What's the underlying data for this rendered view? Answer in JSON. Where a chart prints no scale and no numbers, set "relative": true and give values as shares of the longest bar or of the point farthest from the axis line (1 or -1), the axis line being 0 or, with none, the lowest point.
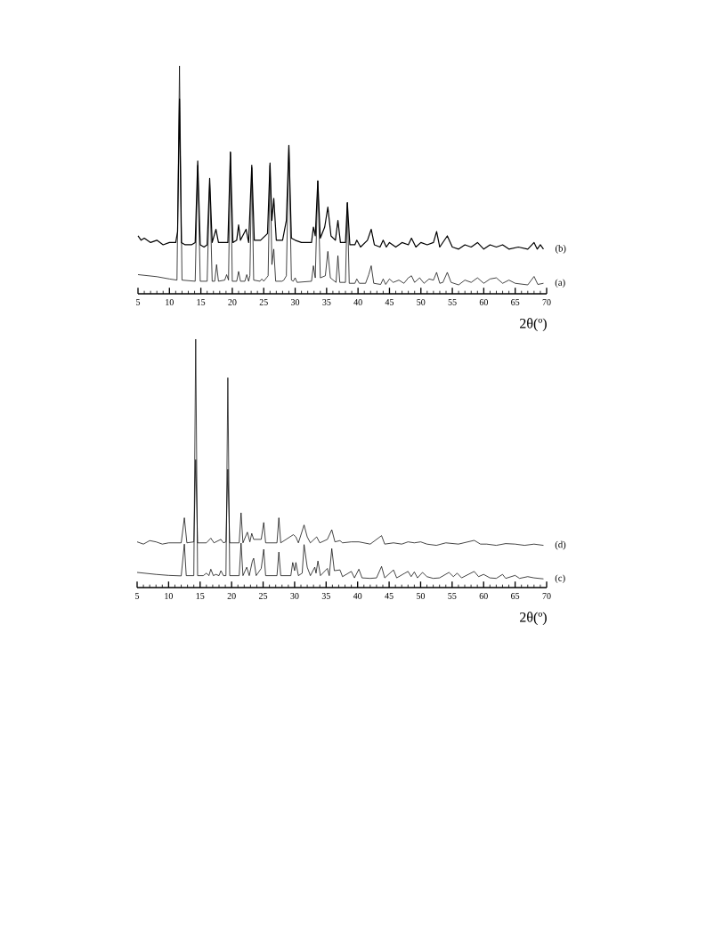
{
  "chart_data": [
    {
      "type": "line",
      "relative": true,
      "xlabel": "2θ(º)",
      "xlim": [
        5,
        70
      ],
      "xticks": [
        5,
        10,
        15,
        20,
        25,
        30,
        35,
        40,
        45,
        50,
        55,
        60,
        65,
        70
      ],
      "grid": false,
      "legend": false,
      "series": [
        {
          "name": "(b)",
          "color": "#000000",
          "x": [
            5,
            5.5,
            6,
            7,
            8,
            9,
            10,
            11,
            11.3,
            11.6,
            11.9,
            12.5,
            13.5,
            14.1,
            14.5,
            14.9,
            15.5,
            16.0,
            16.4,
            16.8,
            17.4,
            17.8,
            18.5,
            19.3,
            19.7,
            20.1,
            20.7,
            21.0,
            21.3,
            22.2,
            22.6,
            23.1,
            23.5,
            24.5,
            25.6,
            26.0,
            26.3,
            26.6,
            27.0,
            28.0,
            28.6,
            29.0,
            29.4,
            30.0,
            31.0,
            32.6,
            32.9,
            33.2,
            33.6,
            34.0,
            34.7,
            35.2,
            35.7,
            36.4,
            36.8,
            37.2,
            38.0,
            38.3,
            38.7,
            39.5,
            39.8,
            40.4,
            41.5,
            42.1,
            42.6,
            43.5,
            44.0,
            44.5,
            45.0,
            46.0,
            47.0,
            48.0,
            48.5,
            49.2,
            50.0,
            51.0,
            52.0,
            52.5,
            53.0,
            54.2,
            55.0,
            56.0,
            57.0,
            58.0,
            59.0,
            60.0,
            61.0,
            62.0,
            63.0,
            64.0,
            65.5,
            67.0,
            68.0,
            68.5,
            69.0,
            69.5
          ],
          "values": [
            0.254,
            0.235,
            0.244,
            0.225,
            0.235,
            0.215,
            0.225,
            0.225,
            0.273,
            0.855,
            0.225,
            0.215,
            0.215,
            0.225,
            0.583,
            0.215,
            0.205,
            0.215,
            0.506,
            0.225,
            0.283,
            0.225,
            0.225,
            0.225,
            0.622,
            0.225,
            0.235,
            0.302,
            0.235,
            0.283,
            0.225,
            0.564,
            0.235,
            0.235,
            0.264,
            0.574,
            0.322,
            0.419,
            0.235,
            0.235,
            0.322,
            0.651,
            0.244,
            0.235,
            0.225,
            0.225,
            0.293,
            0.254,
            0.496,
            0.244,
            0.293,
            0.38,
            0.254,
            0.235,
            0.322,
            0.225,
            0.225,
            0.4,
            0.215,
            0.215,
            0.235,
            0.205,
            0.235,
            0.283,
            0.215,
            0.205,
            0.235,
            0.205,
            0.225,
            0.205,
            0.225,
            0.215,
            0.244,
            0.205,
            0.225,
            0.215,
            0.225,
            0.273,
            0.205,
            0.254,
            0.205,
            0.196,
            0.215,
            0.205,
            0.225,
            0.196,
            0.215,
            0.205,
            0.215,
            0.196,
            0.205,
            0.196,
            0.225,
            0.196,
            0.215,
            0.196
          ]
        },
        {
          "name": "(a)",
          "color": "#000000",
          "x": [
            5,
            8,
            10,
            11.2,
            11.6,
            12.0,
            14.1,
            14.5,
            14.9,
            16.0,
            16.4,
            16.8,
            17.2,
            17.5,
            17.8,
            18.8,
            19.1,
            19.4,
            19.7,
            20.0,
            20.7,
            21.0,
            21.3,
            22.0,
            22.3,
            22.6,
            22.8,
            23.1,
            23.4,
            24.4,
            24.7,
            25.0,
            25.7,
            26.0,
            26.3,
            26.6,
            26.9,
            27.9,
            28.2,
            28.6,
            29.0,
            29.4,
            29.7,
            30.0,
            30.3,
            32.6,
            32.9,
            33.2,
            33.6,
            34.0,
            34.8,
            35.2,
            35.6,
            36.5,
            36.8,
            37.1,
            38.0,
            38.3,
            38.6,
            39.5,
            39.8,
            40.2,
            41.2,
            41.7,
            42.1,
            42.5,
            43.6,
            44.0,
            44.4,
            45.0,
            45.6,
            46.5,
            47.3,
            48.0,
            48.5,
            49.0,
            49.8,
            50.5,
            51.3,
            52.0,
            52.5,
            53.0,
            53.5,
            54.2,
            54.8,
            56.0,
            57.0,
            58.0,
            59.0,
            60.0,
            61.0,
            62.0,
            63.0,
            64.0,
            65.0,
            67.0,
            68.0,
            68.6,
            69.5
          ],
          "values": [
            0.084,
            0.075,
            0.065,
            0.06,
            1.0,
            0.06,
            0.055,
            0.564,
            0.055,
            0.055,
            0.486,
            0.055,
            0.055,
            0.128,
            0.055,
            0.06,
            0.084,
            0.06,
            0.622,
            0.055,
            0.055,
            0.098,
            0.055,
            0.055,
            0.084,
            0.055,
            0.079,
            0.554,
            0.06,
            0.055,
            0.065,
            0.055,
            0.079,
            0.564,
            0.128,
            0.196,
            0.055,
            0.055,
            0.06,
            0.079,
            0.651,
            0.06,
            0.055,
            0.07,
            0.05,
            0.055,
            0.123,
            0.07,
            0.496,
            0.07,
            0.079,
            0.186,
            0.07,
            0.05,
            0.167,
            0.05,
            0.05,
            0.4,
            0.046,
            0.046,
            0.065,
            0.046,
            0.046,
            0.084,
            0.123,
            0.046,
            0.041,
            0.065,
            0.041,
            0.065,
            0.05,
            0.06,
            0.046,
            0.07,
            0.079,
            0.05,
            0.07,
            0.046,
            0.065,
            0.06,
            0.094,
            0.046,
            0.05,
            0.094,
            0.05,
            0.039,
            0.06,
            0.05,
            0.07,
            0.046,
            0.065,
            0.07,
            0.046,
            0.06,
            0.046,
            0.039,
            0.076,
            0.041,
            0.046
          ]
        }
      ]
    },
    {
      "type": "line",
      "relative": true,
      "xlabel": "2θ(º)",
      "xlim": [
        5,
        70
      ],
      "xticks": [
        5,
        10,
        15,
        20,
        25,
        30,
        35,
        40,
        45,
        50,
        55,
        60,
        65,
        70
      ],
      "grid": false,
      "legend": false,
      "series": [
        {
          "name": "(d)",
          "color": "#000000",
          "x": [
            5,
            6,
            7,
            8,
            9,
            10,
            12.0,
            12.5,
            12.9,
            14.0,
            14.3,
            14.6,
            16.0,
            16.7,
            17.2,
            18.3,
            18.7,
            19.1,
            19.4,
            19.7,
            21.2,
            21.5,
            21.8,
            22.5,
            22.9,
            23.2,
            23.5,
            24.7,
            25.1,
            25.4,
            27.2,
            27.5,
            27.8,
            29.8,
            30.2,
            30.6,
            31.5,
            32.0,
            32.5,
            33.5,
            34.0,
            35.2,
            35.9,
            36.4,
            37.2,
            37.6,
            39.0,
            40.2,
            42.0,
            43.8,
            44.3,
            45.7,
            47.0,
            48.0,
            49.0,
            50.0,
            51.0,
            52.5,
            54.0,
            56.0,
            58.5,
            59.5,
            60.5,
            62.0,
            63.5,
            65.0,
            66.5,
            68.0,
            69.5
          ],
          "values": [
            0.184,
            0.175,
            0.189,
            0.184,
            0.175,
            0.18,
            0.18,
            0.281,
            0.18,
            0.184,
            0.515,
            0.18,
            0.18,
            0.199,
            0.18,
            0.194,
            0.18,
            0.184,
            0.476,
            0.18,
            0.18,
            0.301,
            0.18,
            0.223,
            0.184,
            0.218,
            0.194,
            0.194,
            0.262,
            0.18,
            0.18,
            0.281,
            0.18,
            0.213,
            0.204,
            0.18,
            0.252,
            0.204,
            0.18,
            0.204,
            0.18,
            0.194,
            0.233,
            0.184,
            0.189,
            0.18,
            0.184,
            0.184,
            0.175,
            0.209,
            0.175,
            0.18,
            0.175,
            0.184,
            0.18,
            0.184,
            0.175,
            0.17,
            0.18,
            0.175,
            0.19,
            0.175,
            0.175,
            0.17,
            0.177,
            0.175,
            0.17,
            0.175,
            0.17
          ]
        },
        {
          "name": "(c)",
          "color": "#000000",
          "x": [
            5,
            8,
            10,
            12.0,
            12.5,
            12.8,
            14.0,
            14.3,
            14.6,
            15.5,
            16.0,
            16.4,
            16.7,
            17.1,
            17.5,
            18.0,
            18.3,
            18.7,
            19.1,
            19.4,
            19.7,
            21.2,
            21.5,
            21.8,
            22.4,
            22.8,
            23.3,
            23.5,
            23.9,
            24.7,
            25.1,
            25.4,
            27.2,
            27.5,
            27.8,
            29.4,
            29.7,
            30.0,
            30.2,
            30.6,
            31.2,
            31.5,
            32.0,
            32.5,
            33.2,
            33.4,
            33.7,
            34.1,
            35.2,
            35.5,
            35.9,
            36.3,
            37.2,
            37.6,
            39.0,
            39.5,
            40.2,
            40.7,
            42.0,
            43.0,
            43.8,
            44.3,
            45.7,
            46.2,
            47.5,
            48.0,
            48.5,
            49.0,
            49.5,
            50.3,
            51.0,
            52.0,
            53.0,
            54.5,
            55.2,
            55.8,
            56.5,
            58.5,
            59.2,
            60.0,
            61.0,
            62.0,
            63.0,
            63.5,
            65.0,
            65.7,
            67.0,
            68.0,
            69.5
          ],
          "values": [
            0.061,
            0.053,
            0.049,
            0.047,
            0.175,
            0.048,
            0.048,
            1.0,
            0.048,
            0.048,
            0.058,
            0.048,
            0.074,
            0.048,
            0.053,
            0.048,
            0.068,
            0.048,
            0.048,
            0.845,
            0.048,
            0.048,
            0.179,
            0.048,
            0.082,
            0.048,
            0.107,
            0.118,
            0.048,
            0.077,
            0.154,
            0.048,
            0.048,
            0.143,
            0.048,
            0.048,
            0.101,
            0.068,
            0.101,
            0.048,
            0.058,
            0.173,
            0.082,
            0.048,
            0.082,
            0.058,
            0.107,
            0.048,
            0.077,
            0.048,
            0.157,
            0.068,
            0.071,
            0.044,
            0.065,
            0.039,
            0.074,
            0.039,
            0.037,
            0.039,
            0.085,
            0.039,
            0.071,
            0.039,
            0.058,
            0.065,
            0.044,
            0.063,
            0.039,
            0.061,
            0.044,
            0.037,
            0.039,
            0.061,
            0.044,
            0.058,
            0.039,
            0.065,
            0.044,
            0.053,
            0.039,
            0.037,
            0.053,
            0.037,
            0.049,
            0.037,
            0.044,
            0.039,
            0.035
          ]
        }
      ]
    }
  ]
}
